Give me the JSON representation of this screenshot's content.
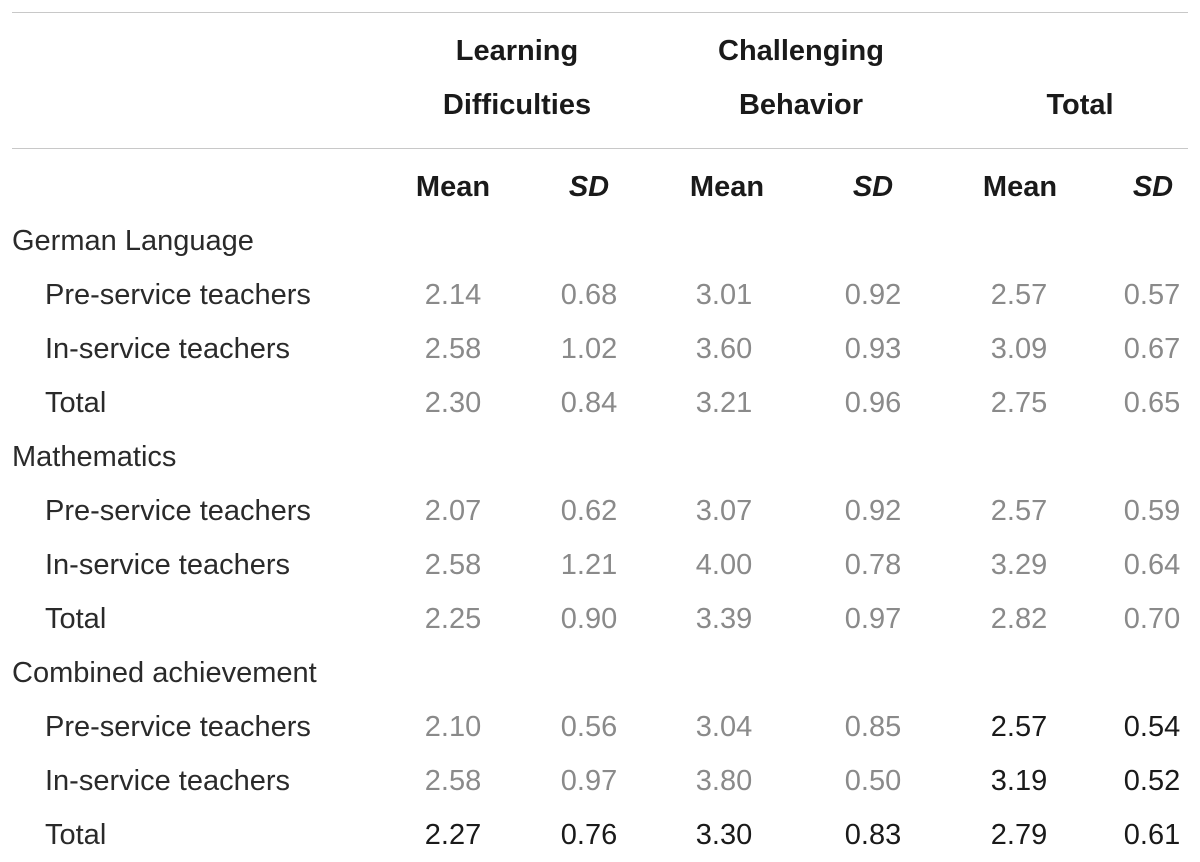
{
  "header": {
    "learning_line1": "Learning",
    "learning_line2": "Difficulties",
    "challenging_line1": "Challenging",
    "challenging_line2": "Behavior",
    "total": "Total"
  },
  "subheader": {
    "mean": "Mean",
    "sd": "SD"
  },
  "groups": [
    {
      "name": "German Language",
      "rows": [
        {
          "label": "Pre-service teachers",
          "values": [
            "2.14",
            "0.68",
            "3.01",
            "0.92",
            "2.57",
            "0.57"
          ]
        },
        {
          "label": "In-service teachers",
          "values": [
            "2.58",
            "1.02",
            "3.60",
            "0.93",
            "3.09",
            "0.67"
          ]
        },
        {
          "label": "Total",
          "values": [
            "2.30",
            "0.84",
            "3.21",
            "0.96",
            "2.75",
            "0.65"
          ]
        }
      ]
    },
    {
      "name": "Mathematics",
      "rows": [
        {
          "label": "Pre-service teachers",
          "values": [
            "2.07",
            "0.62",
            "3.07",
            "0.92",
            "2.57",
            "0.59"
          ]
        },
        {
          "label": "In-service teachers",
          "values": [
            "2.58",
            "1.21",
            "4.00",
            "0.78",
            "3.29",
            "0.64"
          ]
        },
        {
          "label": "Total",
          "values": [
            "2.25",
            "0.90",
            "3.39",
            "0.97",
            "2.82",
            "0.70"
          ]
        }
      ]
    },
    {
      "name": "Combined achievement",
      "rows": [
        {
          "label": "Pre-service teachers",
          "values": [
            "2.10",
            "0.56",
            "3.04",
            "0.85",
            "2.57",
            "0.54"
          ]
        },
        {
          "label": "In-service teachers",
          "values": [
            "2.58",
            "0.97",
            "3.80",
            "0.50",
            "3.19",
            "0.52"
          ]
        },
        {
          "label": "Total",
          "values": [
            "2.27",
            "0.76",
            "3.30",
            "0.83",
            "2.79",
            "0.61"
          ]
        }
      ]
    }
  ],
  "colors": {
    "header_text": "#1a1a1a",
    "row_label_text": "#2a2a2a",
    "value_text_gray": "#8a8a8a",
    "value_text_dark": "#1a1a1a",
    "rule": "#c8c8c8"
  }
}
